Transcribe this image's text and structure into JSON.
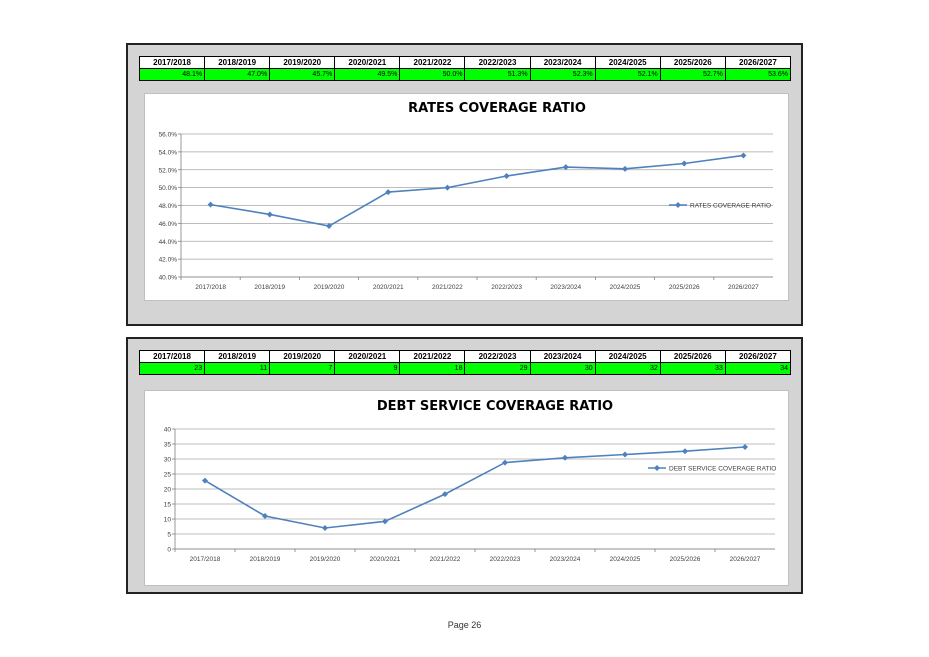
{
  "page": {
    "label": "Page 26"
  },
  "colors": {
    "line": "#4f81bd",
    "highlight": "#00ff00",
    "grid": "#a6a6a6"
  },
  "table1": {
    "headers": [
      "2017/2018",
      "2018/2019",
      "2019/2020",
      "2020/2021",
      "2021/2022",
      "2022/2023",
      "2023/2024",
      "2024/2025",
      "2025/2026",
      "2026/2027"
    ],
    "values": [
      "48.1%",
      "47.0%",
      "45.7%",
      "49.5%",
      "50.0%",
      "51.3%",
      "52.3%",
      "52.1%",
      "52.7%",
      "53.6%"
    ]
  },
  "table2": {
    "headers": [
      "2017/2018",
      "2018/2019",
      "2019/2020",
      "2020/2021",
      "2021/2022",
      "2022/2023",
      "2023/2024",
      "2024/2025",
      "2025/2026",
      "2026/2027"
    ],
    "values": [
      "23",
      "11",
      "7",
      "9",
      "18",
      "29",
      "30",
      "32",
      "33",
      "34"
    ]
  },
  "chart_data": [
    {
      "type": "line",
      "title": "RATES COVERAGE RATIO",
      "categories": [
        "2017/2018",
        "2018/2019",
        "2019/2020",
        "2020/2021",
        "2021/2022",
        "2022/2023",
        "2023/2024",
        "2024/2025",
        "2025/2026",
        "2026/2027"
      ],
      "series": [
        {
          "name": "RATES COVERAGE RATIO",
          "values": [
            48.1,
            47.0,
            45.7,
            49.5,
            50.0,
            51.3,
            52.3,
            52.1,
            52.7,
            53.6
          ]
        }
      ],
      "ylim": [
        40,
        56
      ],
      "yticks": [
        40,
        42,
        44,
        46,
        48,
        50,
        52,
        54,
        56
      ],
      "ytick_labels": [
        "40.0%",
        "42.0%",
        "44.0%",
        "46.0%",
        "48.0%",
        "50.0%",
        "52.0%",
        "54.0%",
        "56.0%"
      ],
      "grid": true,
      "legend": "right"
    },
    {
      "type": "line",
      "title": "DEBT SERVICE COVERAGE RATIO",
      "categories": [
        "2017/2018",
        "2018/2019",
        "2019/2020",
        "2020/2021",
        "2021/2022",
        "2022/2023",
        "2023/2024",
        "2024/2025",
        "2025/2026",
        "2026/2027"
      ],
      "series": [
        {
          "name": "DEBT SERVICE COVERAGE RATIO",
          "values": [
            22.8,
            11.0,
            7.0,
            9.2,
            18.3,
            28.8,
            30.4,
            31.5,
            32.6,
            34.0
          ]
        }
      ],
      "ylim": [
        0,
        40
      ],
      "yticks": [
        0,
        5,
        10,
        15,
        20,
        25,
        30,
        35,
        40
      ],
      "ytick_labels": [
        "0",
        "5",
        "10",
        "15",
        "20",
        "25",
        "30",
        "35",
        "40"
      ],
      "grid": true,
      "legend": "top-right"
    }
  ]
}
